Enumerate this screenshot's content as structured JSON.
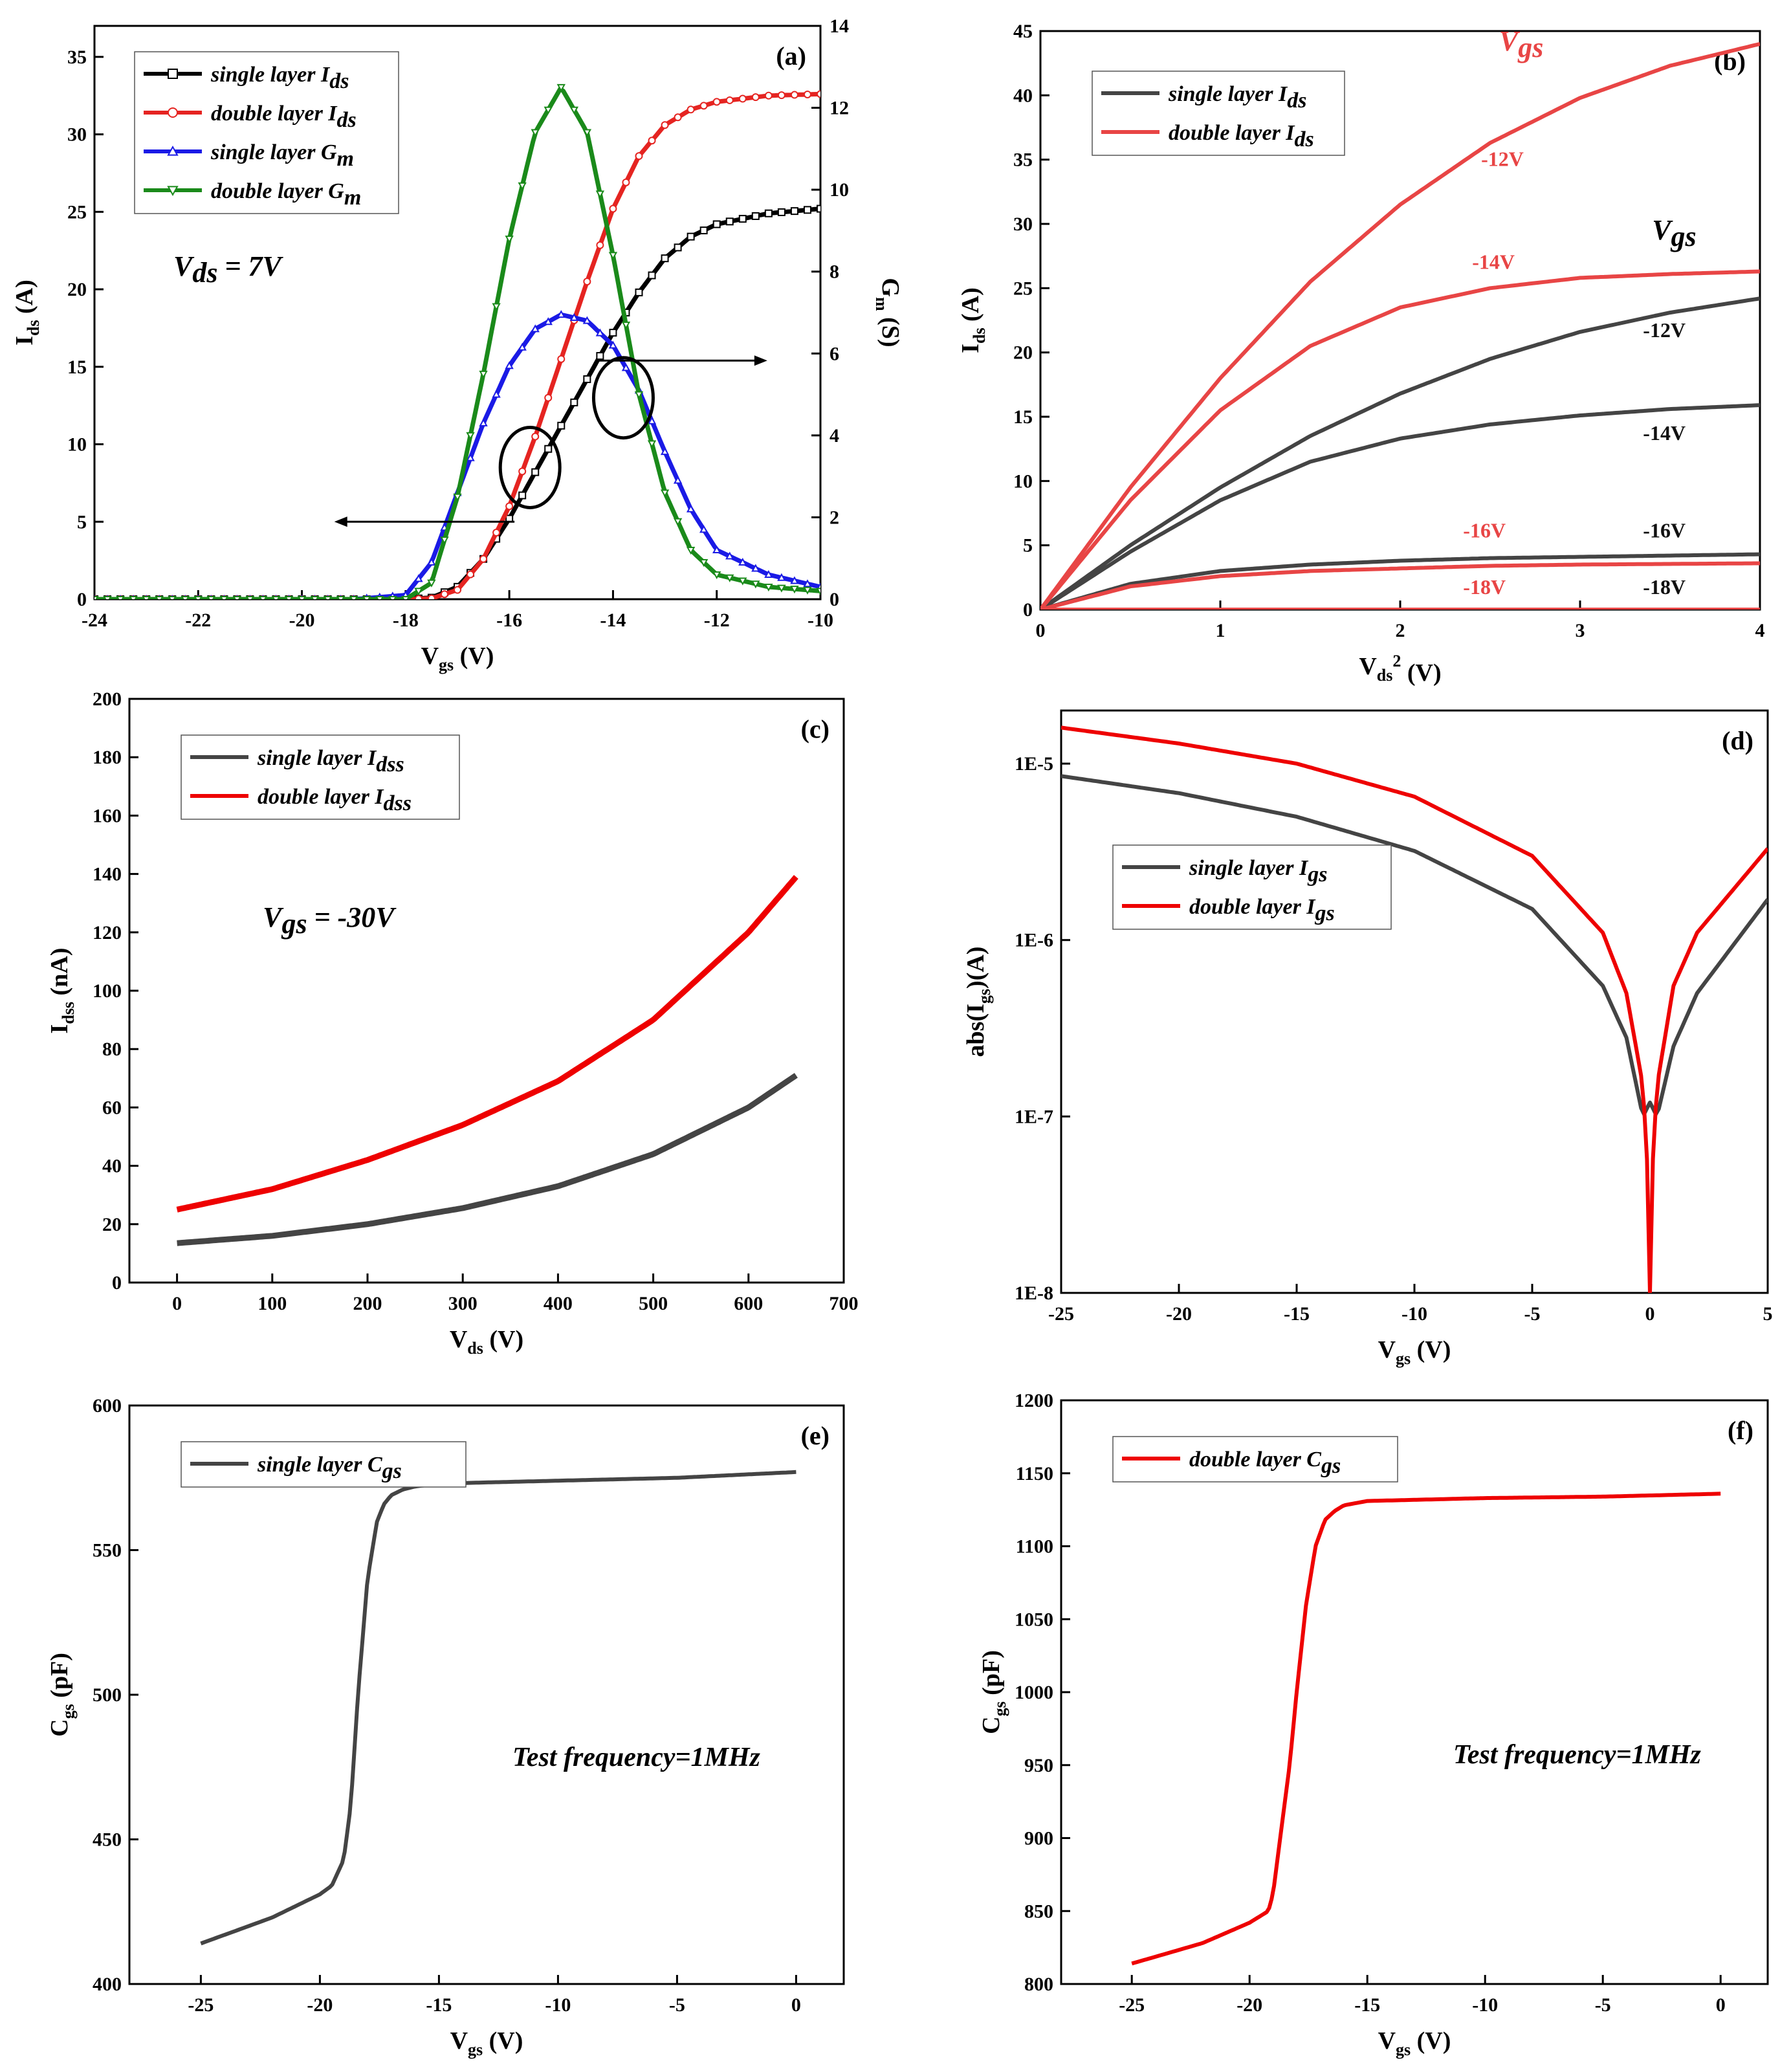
{
  "chart_data": [
    {
      "panel": "(a)",
      "type": "line",
      "xlabel": "Vgs (V)",
      "ylabel": "Ids (A)",
      "y2label": "Gm (S)",
      "xlim": [
        -24,
        -10
      ],
      "ylim": [
        0,
        37
      ],
      "y2lim": [
        0,
        14
      ],
      "xticks": [
        -24,
        -22,
        -20,
        -18,
        -16,
        -14,
        -12,
        -10
      ],
      "yticks": [
        0,
        5,
        10,
        15,
        20,
        25,
        30,
        35
      ],
      "y2ticks": [
        0,
        2,
        4,
        6,
        8,
        10,
        12,
        14
      ],
      "annotation": "Vds = 7V",
      "series": [
        {
          "name": "single layer Ids",
          "axis": "left",
          "color": "#000000",
          "marker": "square",
          "x": [
            -24,
            -20,
            -18,
            -17.5,
            -17,
            -16.5,
            -16,
            -15.5,
            -15,
            -14.5,
            -14,
            -13.5,
            -13,
            -12.5,
            -12,
            -11,
            -10
          ],
          "y": [
            0,
            0,
            0,
            0.1,
            0.8,
            2.6,
            5.2,
            8.2,
            11.2,
            14.2,
            17.2,
            19.8,
            22,
            23.4,
            24.2,
            24.9,
            25.2
          ]
        },
        {
          "name": "double layer Ids",
          "axis": "left",
          "color": "#e52421",
          "marker": "circle",
          "x": [
            -24,
            -20,
            -18,
            -17.5,
            -17,
            -16.5,
            -16,
            -15.5,
            -15,
            -14.5,
            -14,
            -13.5,
            -13,
            -12.5,
            -12,
            -11,
            -10
          ],
          "y": [
            0,
            0,
            0,
            0.05,
            0.6,
            2.6,
            6,
            10.5,
            15.5,
            20.5,
            25.2,
            28.6,
            30.6,
            31.6,
            32.1,
            32.5,
            32.6
          ]
        },
        {
          "name": "single layer Gm",
          "axis": "right",
          "color": "#1a1ae6",
          "marker": "triangle-up",
          "x": [
            -24,
            -19,
            -18,
            -17.5,
            -17,
            -16.5,
            -16,
            -15.5,
            -15,
            -14.5,
            -14,
            -13.5,
            -13,
            -12.5,
            -12,
            -11,
            -10
          ],
          "y": [
            0,
            0,
            0.1,
            0.9,
            2.6,
            4.3,
            5.7,
            6.6,
            6.95,
            6.8,
            6.2,
            5.1,
            3.6,
            2.2,
            1.2,
            0.6,
            0.3
          ]
        },
        {
          "name": "double layer Gm",
          "axis": "right",
          "color": "#1a8a1a",
          "marker": "triangle-down",
          "x": [
            -24,
            -18,
            -17.5,
            -17,
            -16.5,
            -16,
            -15.5,
            -15,
            -14.5,
            -14,
            -13.5,
            -13,
            -12.5,
            -12,
            -11,
            -10
          ],
          "y": [
            0,
            0,
            0.4,
            2.5,
            5.5,
            8.8,
            11.4,
            12.5,
            11.4,
            8.4,
            5,
            2.6,
            1.2,
            0.6,
            0.3,
            0.2
          ]
        }
      ]
    },
    {
      "panel": "(b)",
      "type": "line",
      "xlabel": "Vds2 (V)",
      "ylabel": "Ids (A)",
      "xlim": [
        0,
        4
      ],
      "ylim": [
        0,
        45
      ],
      "xticks": [
        0,
        1,
        2,
        3,
        4
      ],
      "yticks": [
        0,
        5,
        10,
        15,
        20,
        25,
        30,
        35,
        40,
        45
      ],
      "series": [
        {
          "name": "single layer Ids",
          "color": "#444444",
          "vgs": "-12V",
          "x": [
            0,
            0.5,
            1,
            1.5,
            2,
            2.5,
            3,
            3.5,
            4
          ],
          "y": [
            0,
            5,
            9.5,
            13.5,
            16.8,
            19.5,
            21.6,
            23.1,
            24.2
          ]
        },
        {
          "name": "single layer Ids",
          "color": "#444444",
          "vgs": "-14V",
          "x": [
            0,
            0.5,
            1,
            1.5,
            2,
            2.5,
            3,
            3.5,
            4
          ],
          "y": [
            0,
            4.5,
            8.5,
            11.5,
            13.3,
            14.4,
            15.1,
            15.6,
            15.9
          ]
        },
        {
          "name": "single layer Ids",
          "color": "#444444",
          "vgs": "-16V",
          "x": [
            0,
            0.5,
            1,
            1.5,
            2,
            2.5,
            3,
            3.5,
            4
          ],
          "y": [
            0,
            2,
            3,
            3.5,
            3.8,
            4,
            4.1,
            4.2,
            4.3
          ]
        },
        {
          "name": "single layer Ids",
          "color": "#444444",
          "vgs": "-18V",
          "x": [
            0,
            4
          ],
          "y": [
            0,
            0
          ]
        },
        {
          "name": "double layer Ids",
          "color": "#e84545",
          "vgs": "-12V",
          "x": [
            0,
            0.5,
            1,
            1.5,
            2,
            2.5,
            3,
            3.5,
            4
          ],
          "y": [
            0,
            9.5,
            18,
            25.5,
            31.5,
            36.3,
            39.8,
            42.3,
            44
          ]
        },
        {
          "name": "double layer Ids",
          "color": "#e84545",
          "vgs": "-14V",
          "x": [
            0,
            0.5,
            1,
            1.5,
            2,
            2.5,
            3,
            3.5,
            4
          ],
          "y": [
            0,
            8.5,
            15.5,
            20.5,
            23.5,
            25,
            25.8,
            26.1,
            26.3
          ]
        },
        {
          "name": "double layer Ids",
          "color": "#e84545",
          "vgs": "-16V",
          "x": [
            0,
            0.5,
            1,
            1.5,
            2,
            2.5,
            3,
            3.5,
            4
          ],
          "y": [
            0,
            1.8,
            2.6,
            3,
            3.2,
            3.4,
            3.5,
            3.55,
            3.6
          ]
        },
        {
          "name": "double layer Ids",
          "color": "#e84545",
          "vgs": "-18V",
          "x": [
            0,
            4
          ],
          "y": [
            0,
            0
          ]
        }
      ]
    },
    {
      "panel": "(c)",
      "type": "line",
      "xlabel": "Vds (V)",
      "ylabel": "Idss (nA)",
      "xlim": [
        -50,
        700
      ],
      "ylim": [
        0,
        200
      ],
      "xticks": [
        0,
        100,
        200,
        300,
        400,
        500,
        600,
        700
      ],
      "yticks": [
        0,
        20,
        40,
        60,
        80,
        100,
        120,
        140,
        160,
        180,
        200
      ],
      "annotation": "Vgs = -30V",
      "series": [
        {
          "name": "single layer Idss",
          "color": "#444444",
          "x": [
            0,
            100,
            200,
            300,
            400,
            500,
            600,
            650
          ],
          "y": [
            13.5,
            16,
            20,
            25.5,
            33,
            44,
            60,
            71
          ]
        },
        {
          "name": "double layer Idss",
          "color": "#ee0000",
          "x": [
            0,
            100,
            200,
            300,
            400,
            500,
            600,
            650
          ],
          "y": [
            25,
            32,
            42,
            54,
            69,
            90,
            120,
            139
          ]
        }
      ]
    },
    {
      "panel": "(d)",
      "type": "line",
      "xlabel": "Vgs (V)",
      "ylabel": "abs(Igs)(A)",
      "yscale": "log",
      "xlim": [
        -25,
        5
      ],
      "ylim": [
        1e-08,
        2e-05
      ],
      "xticks": [
        -25,
        -20,
        -15,
        -10,
        -5,
        0,
        5
      ],
      "yticks": [
        "1E-8",
        "1E-7",
        "1E-6",
        "1E-5"
      ],
      "series": [
        {
          "name": "single layer Igs",
          "color": "#444444",
          "x": [
            -25,
            -20,
            -15,
            -10,
            -5,
            -2,
            -1,
            -0.3,
            0,
            0.3,
            1,
            2,
            5
          ],
          "y": [
            8.5e-06,
            6.8e-06,
            5e-06,
            3.2e-06,
            1.5e-06,
            5.5e-07,
            2.8e-07,
            1e-07,
            1.2e-07,
            1e-07,
            2.5e-07,
            5e-07,
            1.7e-06
          ]
        },
        {
          "name": "double layer Igs",
          "color": "#ee0000",
          "x": [
            -25,
            -20,
            -15,
            -10,
            -5,
            -2,
            -1,
            -0.3,
            -0.1,
            0,
            0.1,
            0.3,
            1,
            2,
            5
          ],
          "y": [
            1.6e-05,
            1.3e-05,
            1e-05,
            6.5e-06,
            3e-06,
            1.1e-06,
            5e-07,
            1.5e-07,
            5e-08,
            1e-08,
            5e-08,
            1.5e-07,
            5.5e-07,
            1.1e-06,
            3.3e-06
          ]
        }
      ]
    },
    {
      "panel": "(e)",
      "type": "line",
      "xlabel": "Vgs (V)",
      "ylabel": "Cgs (pF)",
      "xlim": [
        -28,
        2
      ],
      "ylim": [
        400,
        600
      ],
      "xticks": [
        -25,
        -20,
        -15,
        -10,
        -5,
        0
      ],
      "yticks": [
        400,
        450,
        500,
        550,
        600
      ],
      "annotation": "Test frequency=1MHz",
      "series": [
        {
          "name": "single layer Cgs",
          "color": "#444444",
          "x": [
            -25,
            -22,
            -20,
            -19.5,
            -19,
            -18.7,
            -18.4,
            -18,
            -17.6,
            -17.3,
            -17,
            -16.5,
            -16,
            -15,
            -10,
            -5,
            0
          ],
          "y": [
            414,
            423,
            431,
            434,
            443,
            462,
            500,
            540,
            560,
            566,
            569,
            571,
            572,
            573,
            574,
            575,
            577
          ]
        }
      ]
    },
    {
      "panel": "(f)",
      "type": "line",
      "xlabel": "Vgs (V)",
      "ylabel": "Cgs (pF)",
      "xlim": [
        -28,
        2
      ],
      "ylim": [
        800,
        1200
      ],
      "xticks": [
        -25,
        -20,
        -15,
        -10,
        -5,
        0
      ],
      "yticks": [
        800,
        850,
        900,
        950,
        1000,
        1050,
        1100,
        1150,
        1200
      ],
      "annotation": "Test frequency=1MHz",
      "series": [
        {
          "name": "double layer Cgs",
          "color": "#ee0000",
          "x": [
            -25,
            -22,
            -20,
            -19.2,
            -19,
            -18.7,
            -18.3,
            -18,
            -17.6,
            -17.2,
            -16.8,
            -16.4,
            -16,
            -15,
            -10,
            -5,
            0
          ],
          "y": [
            814,
            828,
            842,
            850,
            862,
            900,
            950,
            1000,
            1060,
            1100,
            1118,
            1124,
            1128,
            1131,
            1133,
            1134,
            1136
          ]
        }
      ]
    }
  ]
}
